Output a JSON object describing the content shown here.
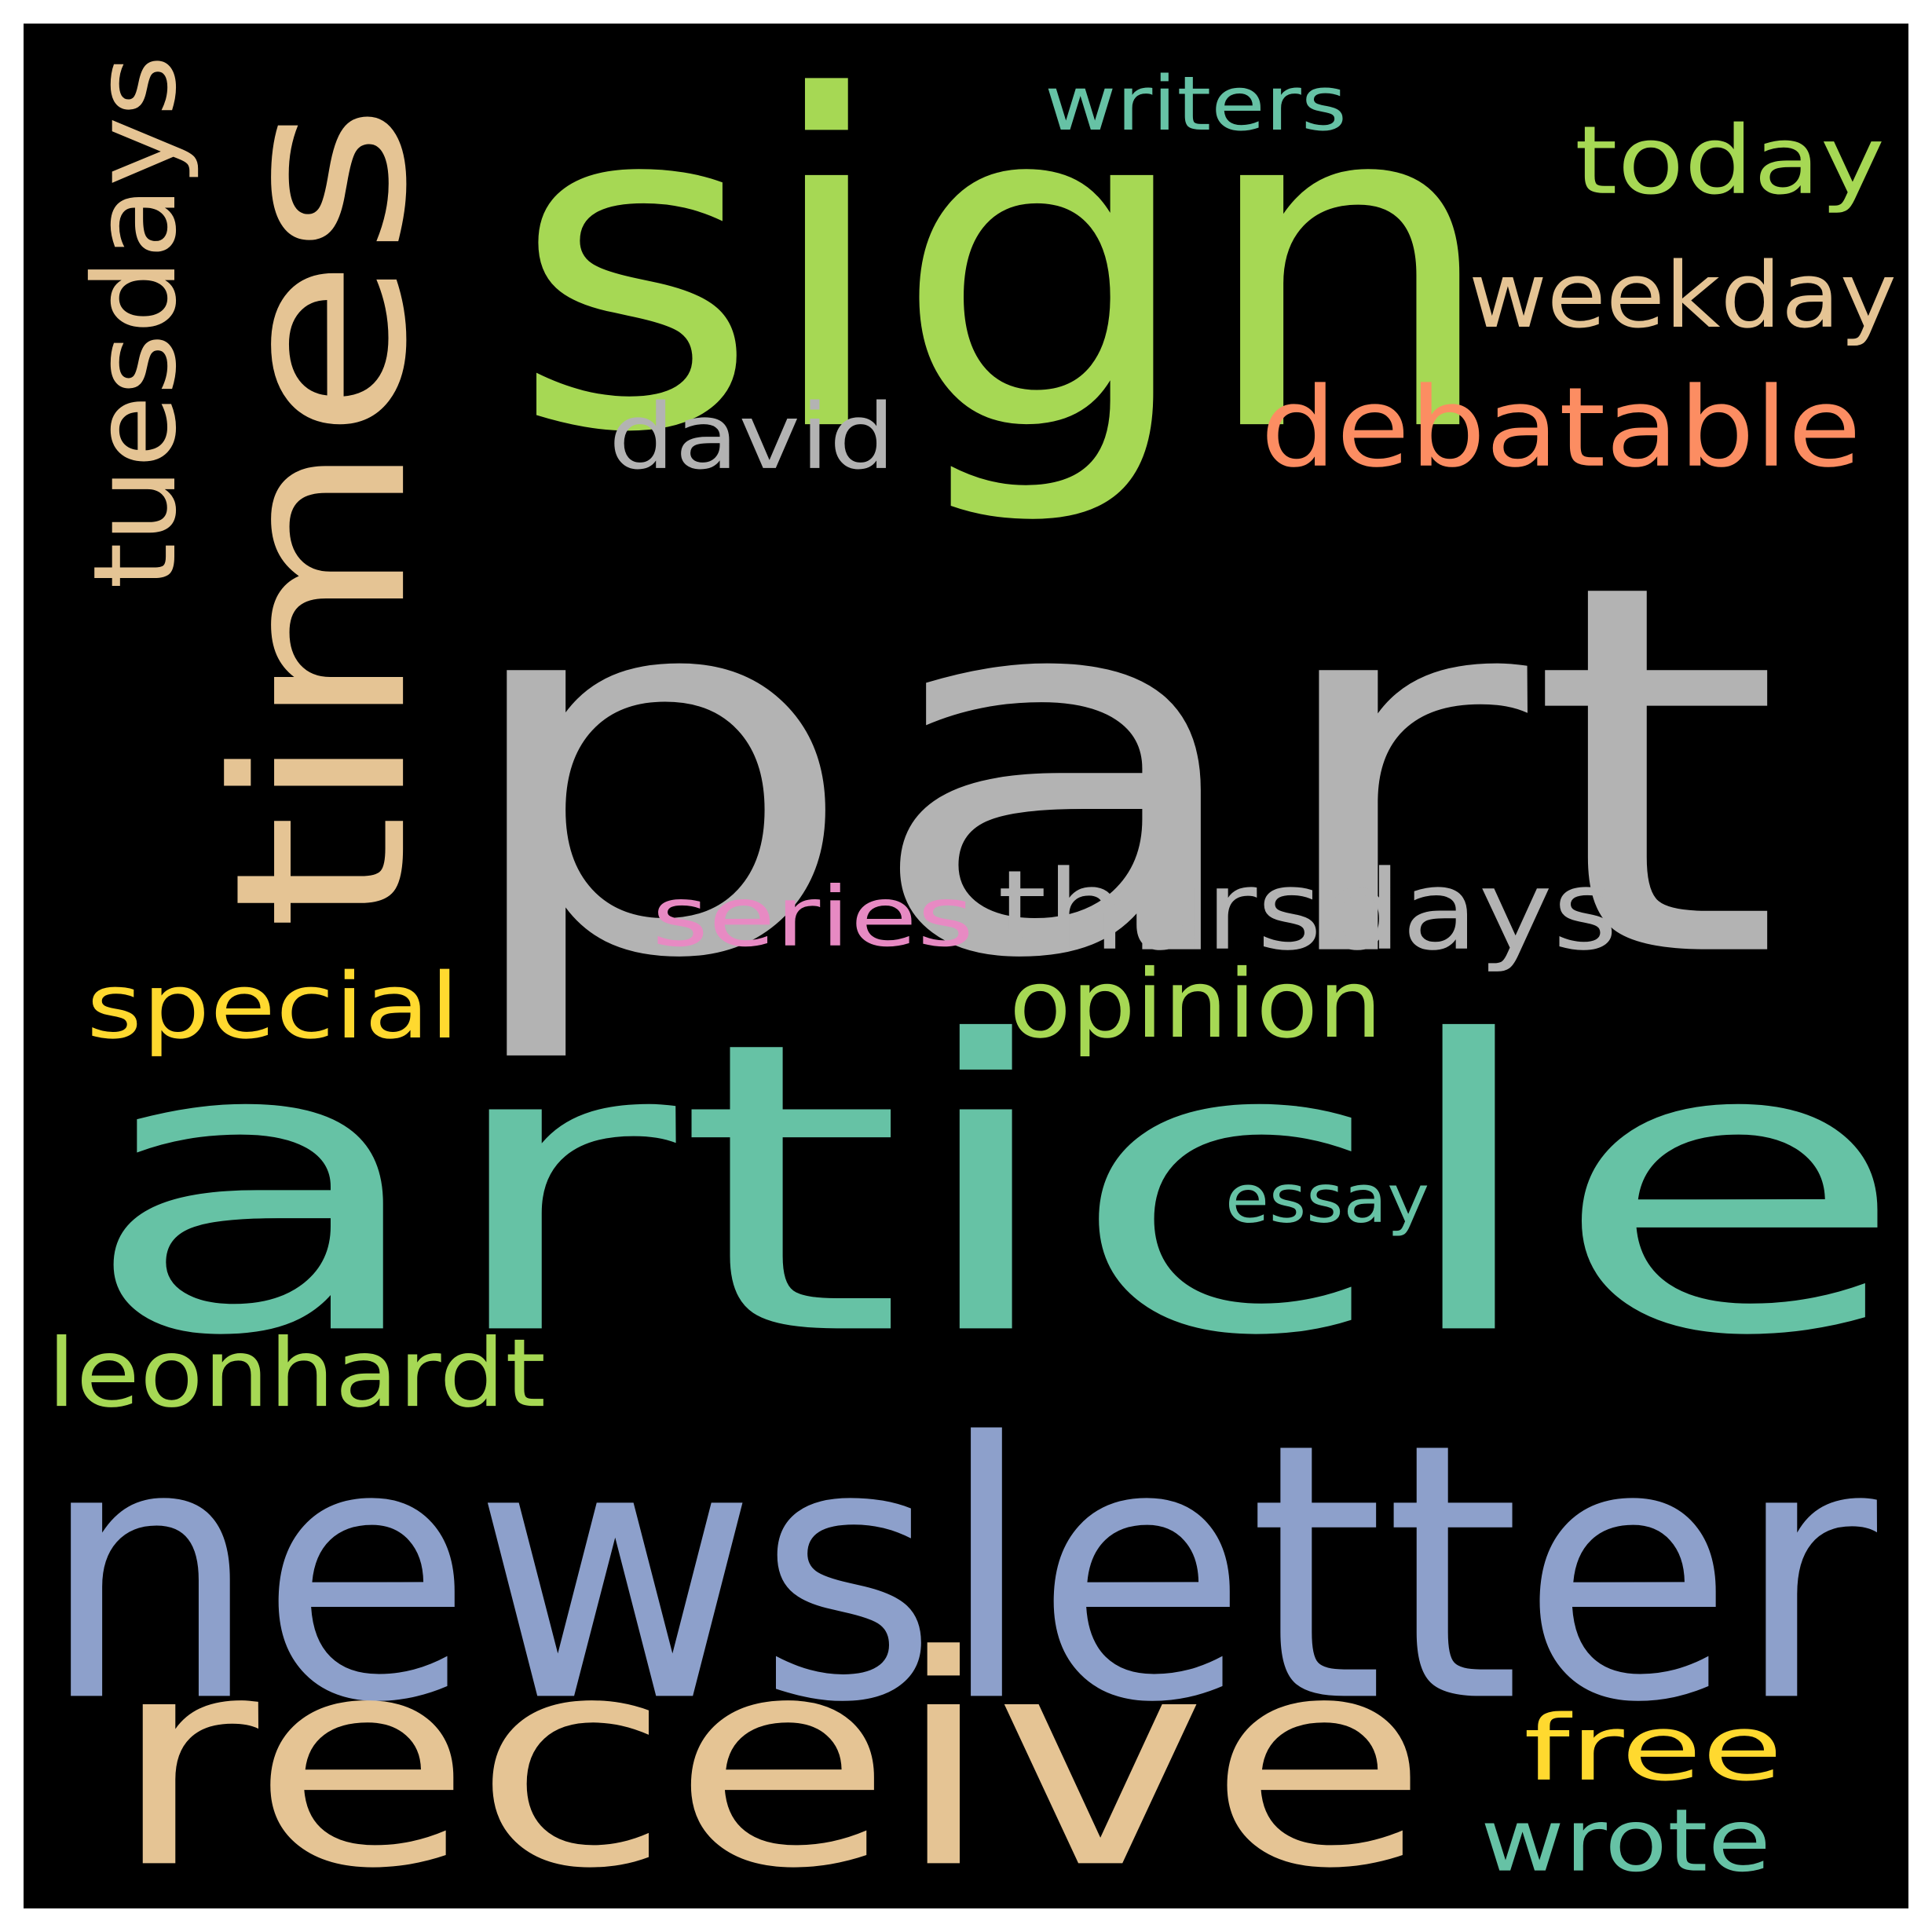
{
  "background_color": "#000000",
  "words": [
    {
      "text": "part",
      "color": "#b3b3b3",
      "orientation": "horizontal"
    },
    {
      "text": "article",
      "color": "#66c2a5",
      "orientation": "horizontal"
    },
    {
      "text": "newsletter",
      "color": "#8da0cb",
      "orientation": "horizontal"
    },
    {
      "text": "sign",
      "color": "#a6d854",
      "orientation": "horizontal"
    },
    {
      "text": "receive",
      "color": "#e5c494",
      "orientation": "horizontal"
    },
    {
      "text": "times",
      "color": "#e5c494",
      "orientation": "vertical"
    },
    {
      "text": "thursdays",
      "color": "#b3b3b3",
      "orientation": "horizontal"
    },
    {
      "text": "debatable",
      "color": "#fc8d62",
      "orientation": "horizontal"
    },
    {
      "text": "tuesdays",
      "color": "#e5c494",
      "orientation": "vertical"
    },
    {
      "text": "today",
      "color": "#a6d854",
      "orientation": "horizontal"
    },
    {
      "text": "weekday",
      "color": "#e5c494",
      "orientation": "horizontal"
    },
    {
      "text": "david",
      "color": "#b3b3b3",
      "orientation": "horizontal"
    },
    {
      "text": "series",
      "color": "#e78ac3",
      "orientation": "horizontal"
    },
    {
      "text": "opinion",
      "color": "#a6d854",
      "orientation": "horizontal"
    },
    {
      "text": "special",
      "color": "#ffd92f",
      "orientation": "horizontal"
    },
    {
      "text": "leonhardt",
      "color": "#a6d854",
      "orientation": "horizontal"
    },
    {
      "text": "writers",
      "color": "#66c2a5",
      "orientation": "horizontal"
    },
    {
      "text": "free",
      "color": "#ffd92f",
      "orientation": "horizontal"
    },
    {
      "text": "wrote",
      "color": "#66c2a5",
      "orientation": "horizontal"
    },
    {
      "text": "essay",
      "color": "#66c2a5",
      "orientation": "horizontal"
    }
  ]
}
